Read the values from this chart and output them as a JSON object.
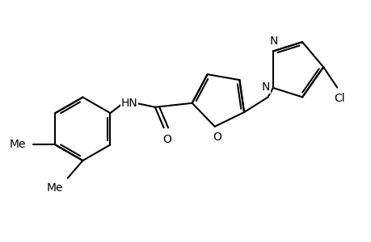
{
  "bg_color": "#ffffff",
  "line_color": "#000000",
  "line_width": 1.5,
  "font_size": 10,
  "figsize": [
    4.6,
    3.0
  ],
  "dpi": 100,
  "xlim": [
    0,
    9.2
  ],
  "ylim": [
    0,
    6.0
  ]
}
